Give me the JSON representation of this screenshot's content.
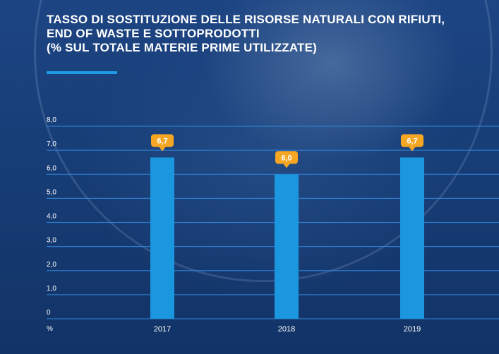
{
  "title_lines": [
    "TASSO DI SOSTITUZIONE DELLE RISORSE NATURALI CON RIFIUTI,",
    "END OF WASTE E SOTTOPRODOTTI",
    "(% SUL TOTALE MATERIE PRIME UTILIZZATE)"
  ],
  "colors": {
    "background": "#15386e",
    "bar": "#1b97e0",
    "label_badge": "#f5a623",
    "gridline": "#2f7fd0",
    "accent_rule": "#1e9be6"
  },
  "chart_data": {
    "type": "bar",
    "categories": [
      "2017",
      "2018",
      "2019"
    ],
    "values": [
      6.7,
      6.0,
      6.7
    ],
    "data_labels": [
      "6,7",
      "6,0",
      "6,7"
    ],
    "ylabel": "%",
    "ylim": [
      0,
      8
    ],
    "yticks": [
      0,
      1,
      2,
      3,
      4,
      5,
      6,
      7,
      8
    ],
    "ytick_labels": [
      "0",
      "1,0",
      "2,0",
      "3,0",
      "4,0",
      "5,0",
      "6,0",
      "7,0",
      "8,0"
    ],
    "grid": true,
    "legend": "none"
  }
}
